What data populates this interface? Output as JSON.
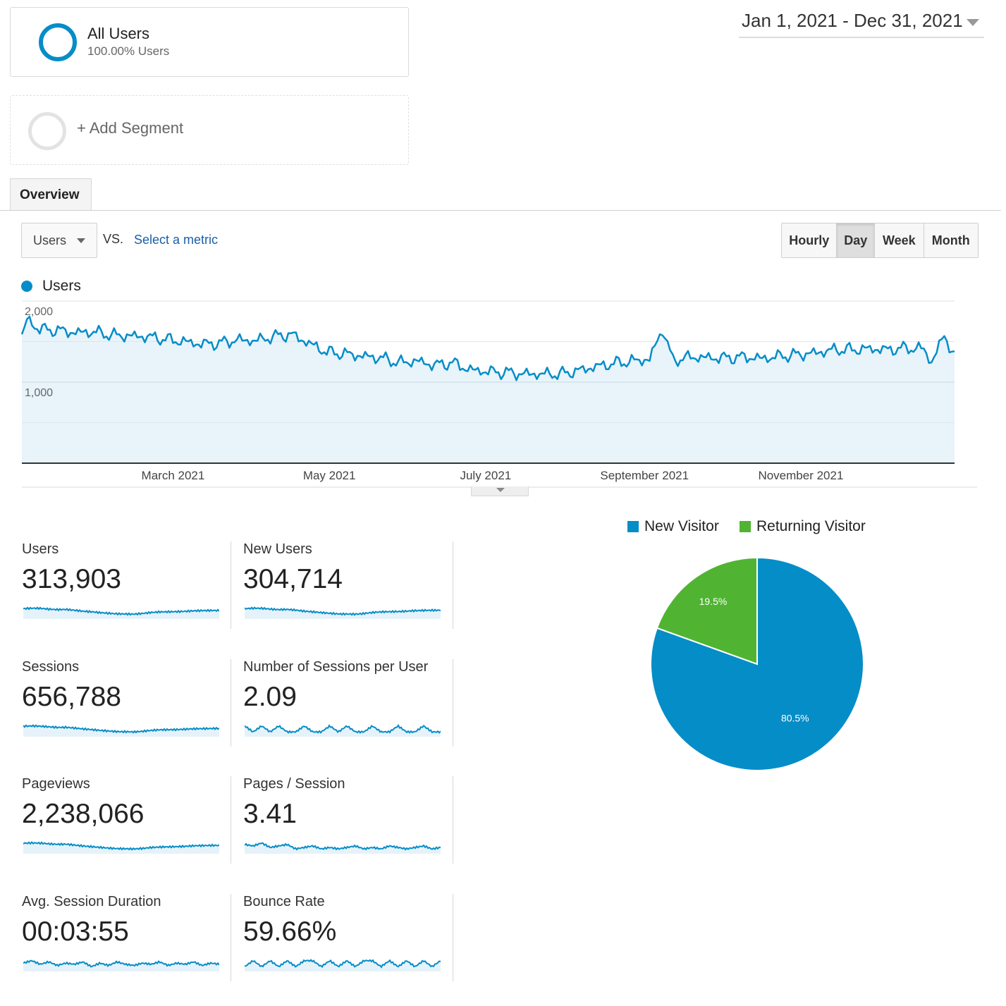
{
  "segments": {
    "all_users": {
      "title": "All Users",
      "subtitle": "100.00% Users"
    },
    "add_segment": {
      "label": "+ Add Segment"
    }
  },
  "date_range": {
    "label": "Jan 1, 2021 - Dec 31, 2021"
  },
  "tabs": [
    {
      "label": "Overview",
      "active": true
    }
  ],
  "controls": {
    "metric_select": "Users",
    "vs_label": "VS.",
    "select_metric_link": "Select a metric",
    "granularity": [
      {
        "label": "Hourly",
        "active": false
      },
      {
        "label": "Day",
        "active": true
      },
      {
        "label": "Week",
        "active": false
      },
      {
        "label": "Month",
        "active": false
      }
    ]
  },
  "colors": {
    "series": "#058dc7",
    "area": "#e6f2fa",
    "returning": "#50b432"
  },
  "chart_legend": {
    "series_label": "Users"
  },
  "chart_data": [
    {
      "type": "area",
      "x_range": [
        "2021-01-01",
        "2021-12-31"
      ],
      "ylim": [
        0,
        2000
      ],
      "y_ticks": [
        {
          "value": 2000,
          "label": "2,000"
        },
        {
          "value": 1000,
          "label": "1,000"
        }
      ],
      "x_ticks": [
        {
          "date": "2021-03-01",
          "label": "March 2021"
        },
        {
          "date": "2021-05-01",
          "label": "May 2021"
        },
        {
          "date": "2021-07-01",
          "label": "July 2021"
        },
        {
          "date": "2021-09-01",
          "label": "September 2021"
        },
        {
          "date": "2021-11-01",
          "label": "November 2021"
        }
      ],
      "grid": true,
      "series": [
        {
          "name": "Users",
          "points": [
            [
              "2021-01-01",
              1560
            ],
            [
              "2021-01-03",
              1770
            ],
            [
              "2021-01-08",
              1650
            ],
            [
              "2021-01-15",
              1640
            ],
            [
              "2021-01-22",
              1610
            ],
            [
              "2021-01-29",
              1620
            ],
            [
              "2021-02-05",
              1580
            ],
            [
              "2021-02-12",
              1570
            ],
            [
              "2021-02-19",
              1560
            ],
            [
              "2021-02-26",
              1530
            ],
            [
              "2021-03-05",
              1500
            ],
            [
              "2021-03-12",
              1470
            ],
            [
              "2021-03-19",
              1480
            ],
            [
              "2021-03-26",
              1520
            ],
            [
              "2021-04-02",
              1510
            ],
            [
              "2021-04-09",
              1560
            ],
            [
              "2021-04-16",
              1590
            ],
            [
              "2021-04-23",
              1480
            ],
            [
              "2021-04-30",
              1370
            ],
            [
              "2021-05-07",
              1350
            ],
            [
              "2021-05-14",
              1320
            ],
            [
              "2021-05-21",
              1300
            ],
            [
              "2021-05-28",
              1240
            ],
            [
              "2021-06-04",
              1260
            ],
            [
              "2021-06-11",
              1210
            ],
            [
              "2021-06-18",
              1240
            ],
            [
              "2021-06-25",
              1150
            ],
            [
              "2021-07-02",
              1130
            ],
            [
              "2021-07-09",
              1120
            ],
            [
              "2021-07-16",
              1100
            ],
            [
              "2021-07-23",
              1100
            ],
            [
              "2021-07-30",
              1100
            ],
            [
              "2021-08-06",
              1140
            ],
            [
              "2021-08-13",
              1190
            ],
            [
              "2021-08-20",
              1230
            ],
            [
              "2021-08-27",
              1260
            ],
            [
              "2021-09-03",
              1280
            ],
            [
              "2021-09-08",
              1660
            ],
            [
              "2021-09-12",
              1270
            ],
            [
              "2021-09-19",
              1310
            ],
            [
              "2021-09-26",
              1300
            ],
            [
              "2021-10-03",
              1300
            ],
            [
              "2021-10-10",
              1310
            ],
            [
              "2021-10-17",
              1290
            ],
            [
              "2021-10-24",
              1320
            ],
            [
              "2021-10-31",
              1340
            ],
            [
              "2021-11-07",
              1360
            ],
            [
              "2021-11-14",
              1400
            ],
            [
              "2021-11-21",
              1400
            ],
            [
              "2021-11-28",
              1410
            ],
            [
              "2021-12-05",
              1400
            ],
            [
              "2021-12-12",
              1420
            ],
            [
              "2021-12-19",
              1410
            ],
            [
              "2021-12-22",
              1240
            ],
            [
              "2021-12-27",
              1580
            ],
            [
              "2021-12-31",
              1320
            ]
          ]
        }
      ]
    },
    {
      "type": "pie",
      "legend": [
        "New Visitor",
        "Returning Visitor"
      ],
      "slices": [
        {
          "label": "New Visitor",
          "value": 80.5,
          "display": "80.5%",
          "color": "#058dc7"
        },
        {
          "label": "Returning Visitor",
          "value": 19.5,
          "display": "19.5%",
          "color": "#50b432"
        }
      ]
    }
  ],
  "metrics": [
    {
      "label": "Users",
      "value": "313,903",
      "trend": [
        1560,
        1600,
        1590,
        1520,
        1480,
        1500,
        1430,
        1350,
        1300,
        1230,
        1180,
        1130,
        1120,
        1100,
        1160,
        1240,
        1290,
        1300,
        1310,
        1340,
        1380,
        1400,
        1410,
        1410
      ]
    },
    {
      "label": "New Users",
      "value": "304,714",
      "trend": [
        1500,
        1540,
        1530,
        1470,
        1430,
        1450,
        1390,
        1310,
        1260,
        1200,
        1150,
        1100,
        1090,
        1080,
        1130,
        1210,
        1260,
        1270,
        1280,
        1310,
        1350,
        1370,
        1380,
        1380
      ]
    },
    {
      "label": "Sessions",
      "value": "656,788",
      "trend": [
        3300,
        3350,
        3300,
        3200,
        3100,
        3120,
        3000,
        2850,
        2740,
        2600,
        2500,
        2400,
        2380,
        2350,
        2450,
        2600,
        2700,
        2720,
        2740,
        2800,
        2870,
        2900,
        2920,
        2920
      ]
    },
    {
      "label": "Number of Sessions per User",
      "value": "2.09",
      "trend": [
        2.1,
        2.09,
        2.1,
        2.09,
        2.1,
        2.09,
        2.09,
        2.1,
        2.09,
        2.09,
        2.1,
        2.09,
        2.1,
        2.09,
        2.09,
        2.1,
        2.09,
        2.09,
        2.1,
        2.09,
        2.09,
        2.1,
        2.09,
        2.09
      ]
    },
    {
      "label": "Pageviews",
      "value": "2,238,066",
      "trend": [
        11200,
        11400,
        11300,
        10900,
        10600,
        10700,
        10200,
        9700,
        9300,
        8900,
        8500,
        8200,
        8100,
        8000,
        8300,
        8800,
        9100,
        9200,
        9300,
        9500,
        9800,
        9900,
        10000,
        10000
      ]
    },
    {
      "label": "Pages / Session",
      "value": "3.41",
      "trend": [
        3.43,
        3.42,
        3.44,
        3.41,
        3.42,
        3.43,
        3.4,
        3.41,
        3.42,
        3.4,
        3.41,
        3.4,
        3.41,
        3.42,
        3.4,
        3.41,
        3.4,
        3.42,
        3.41,
        3.4,
        3.41,
        3.42,
        3.4,
        3.41
      ]
    },
    {
      "label": "Avg. Session Duration",
      "value": "00:03:55",
      "trend": [
        235,
        237,
        234,
        236,
        233,
        235,
        234,
        236,
        232,
        235,
        233,
        236,
        234,
        233,
        235,
        234,
        236,
        233,
        235,
        234,
        236,
        233,
        235,
        234
      ]
    },
    {
      "label": "Bounce Rate",
      "value": "59.66%",
      "trend": [
        59.6,
        59.7,
        59.6,
        59.7,
        59.6,
        59.7,
        59.6,
        59.7,
        59.7,
        59.6,
        59.7,
        59.6,
        59.7,
        59.6,
        59.7,
        59.7,
        59.6,
        59.7,
        59.6,
        59.7,
        59.6,
        59.7,
        59.6,
        59.7
      ]
    }
  ]
}
